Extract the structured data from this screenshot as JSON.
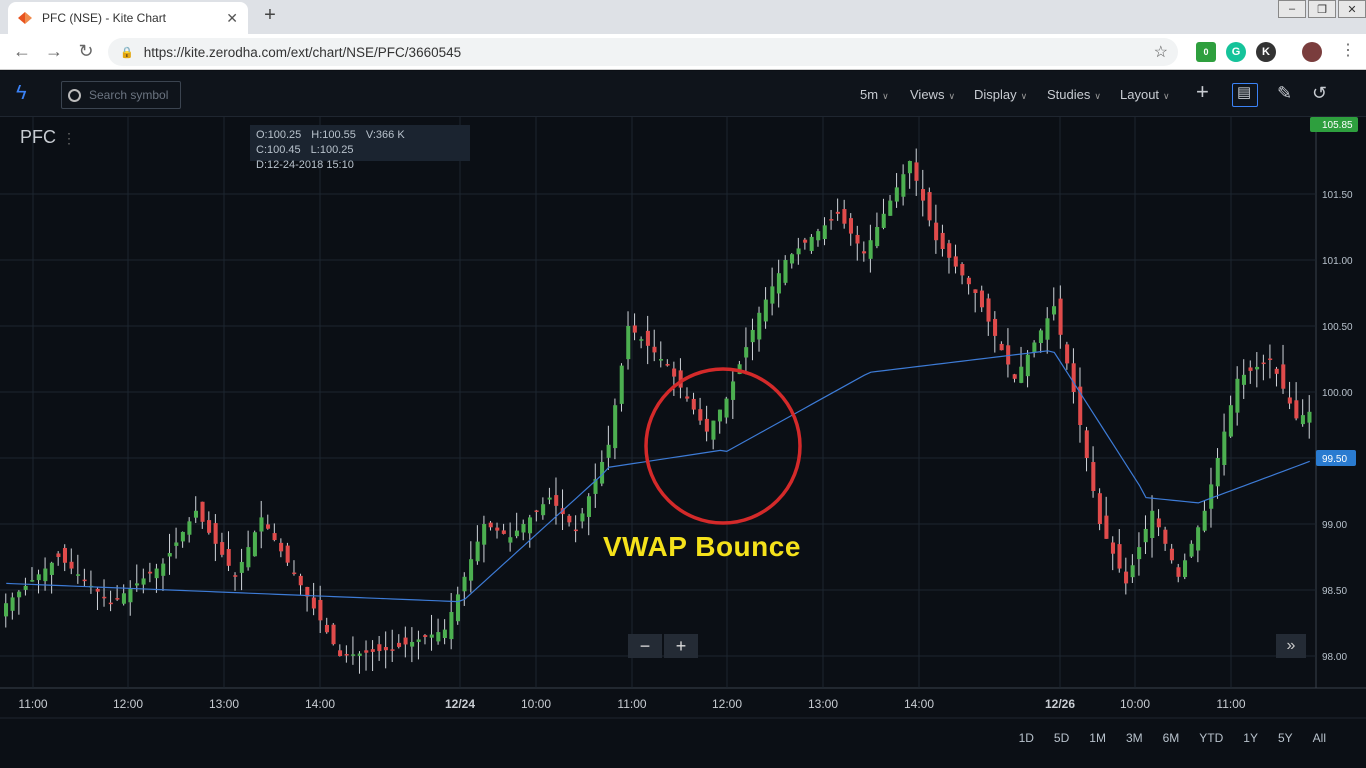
{
  "browser": {
    "tab_title": "PFC (NSE) - Kite Chart",
    "url": "https://kite.zerodha.com/ext/chart/NSE/PFC/3660545",
    "ext_badge": "0"
  },
  "toolbar": {
    "search_placeholder": "Search symbol",
    "interval": "5m",
    "views": "Views",
    "display": "Display",
    "studies": "Studies",
    "layout": "Layout"
  },
  "chart": {
    "symbol": "PFC",
    "ohlc": {
      "open": "O:100.25",
      "high": "H:100.55",
      "volume": "V:366 K",
      "close": "C:100.45",
      "low": "L:100.25",
      "date": "D:12-24-2018 15:10"
    },
    "annotation": "VWAP Bounce",
    "price_top_label": "105.85",
    "price_vwap_label": "99.50"
  },
  "chart_data": {
    "type": "candlestick",
    "y_ticks": [
      "101.50",
      "101.00",
      "100.50",
      "100.00",
      "99.50",
      "99.00",
      "98.50",
      "98.00"
    ],
    "x_ticks": [
      "11:00",
      "12:00",
      "13:00",
      "14:00",
      "12/24",
      "10:00",
      "11:00",
      "12:00",
      "13:00",
      "14:00",
      "12/26",
      "10:00",
      "11:00"
    ],
    "ylim": [
      97.8,
      101.9
    ],
    "grid": true,
    "colors": {
      "up": "#4caf50",
      "down": "#e04b4b",
      "vwap": "#3d7bd6",
      "circle": "#d42a2a",
      "annotation": "#f5e21b"
    }
  },
  "ranges": [
    "1D",
    "5D",
    "1M",
    "3M",
    "6M",
    "YTD",
    "1Y",
    "5Y",
    "All"
  ]
}
